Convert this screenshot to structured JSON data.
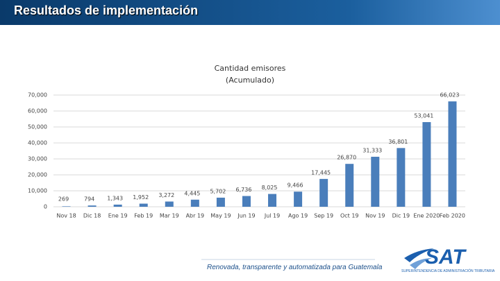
{
  "header": {
    "title": "Resultados de implementación"
  },
  "chart_data": {
    "type": "bar",
    "title": "Cantidad emisores (Acumulado)",
    "categories": [
      "Nov 18",
      "Dic 18",
      "Ene 19",
      "Feb 19",
      "Mar 19",
      "Abr 19",
      "May 19",
      "Jun 19",
      "Jul 19",
      "Ago 19",
      "Sep 19",
      "Oct 19",
      "Nov 19",
      "Dic 19",
      "Ene 2020",
      "Feb 2020"
    ],
    "values": [
      269,
      794,
      1343,
      1952,
      3272,
      4445,
      5702,
      6736,
      8025,
      9466,
      17445,
      26870,
      31333,
      36801,
      53041,
      66023
    ],
    "value_labels": [
      "269",
      "794",
      "1,343",
      "1,952",
      "3,272",
      "4,445",
      "5,702",
      "6,736",
      "8,025",
      "9,466",
      "17,445",
      "26,870",
      "31,333",
      "36,801",
      "53,041",
      "66,023"
    ],
    "color": "#4a7ebb",
    "ylim": [
      0,
      70000
    ],
    "yticks": [
      0,
      {
        "value": 10000,
        "label": "10,000"
      },
      {
        "value": 20000,
        "label": "20,000"
      },
      {
        "value": 30000,
        "label": "30,000"
      },
      {
        "value": 40000,
        "label": "40,000"
      },
      {
        "value": 50000,
        "label": "50,000"
      },
      {
        "value": 60000,
        "label": "60,000"
      },
      {
        "value": 70000,
        "label": "70,000"
      }
    ],
    "grid": true
  },
  "footer": {
    "slogan": "Renovada, transparente y automatizada para Guatemala",
    "logo": "SAT",
    "logo_subtitle": "Superintendencia de Administración Tributaria"
  }
}
